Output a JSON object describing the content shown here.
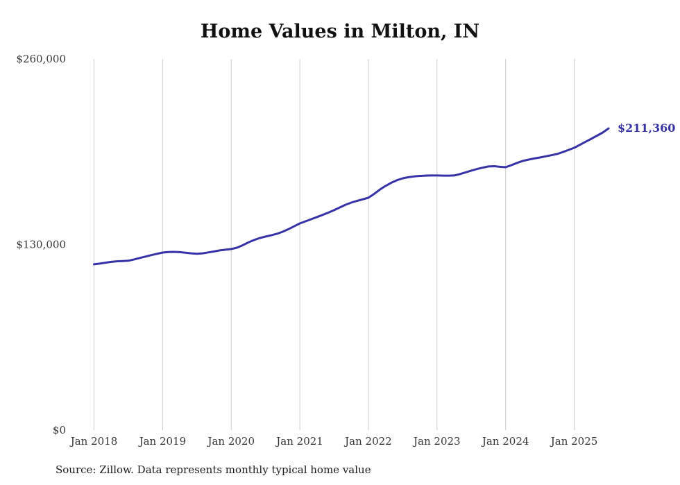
{
  "chart_data": {
    "type": "line",
    "title": "Home Values in Milton, IN",
    "source": "Source: Zillow. Data represents monthly typical home value",
    "xlabel": "",
    "ylabel": "",
    "ylim": [
      0,
      260000
    ],
    "yticks": [
      {
        "value": 0,
        "label": "$0"
      },
      {
        "value": 130000,
        "label": "$130,000"
      },
      {
        "value": 260000,
        "label": "$260,000"
      }
    ],
    "xticks": [
      "Jan 2018",
      "Jan 2019",
      "Jan 2020",
      "Jan 2021",
      "Jan 2022",
      "Jan 2023",
      "Jan 2024",
      "Jan 2025"
    ],
    "grid": "vertical-only",
    "legend": "none",
    "line_color": "#3632a8",
    "grid_color": "#cccccc",
    "tick_color": "#363636",
    "end_label": "$211,360",
    "x": [
      "2018-01",
      "2018-02",
      "2018-03",
      "2018-04",
      "2018-05",
      "2018-06",
      "2018-07",
      "2018-08",
      "2018-09",
      "2018-10",
      "2018-11",
      "2018-12",
      "2019-01",
      "2019-02",
      "2019-03",
      "2019-04",
      "2019-05",
      "2019-06",
      "2019-07",
      "2019-08",
      "2019-09",
      "2019-10",
      "2019-11",
      "2019-12",
      "2020-01",
      "2020-02",
      "2020-03",
      "2020-04",
      "2020-05",
      "2020-06",
      "2020-07",
      "2020-08",
      "2020-09",
      "2020-10",
      "2020-11",
      "2020-12",
      "2021-01",
      "2021-02",
      "2021-03",
      "2021-04",
      "2021-05",
      "2021-06",
      "2021-07",
      "2021-08",
      "2021-09",
      "2021-10",
      "2021-11",
      "2021-12",
      "2022-01",
      "2022-02",
      "2022-03",
      "2022-04",
      "2022-05",
      "2022-06",
      "2022-07",
      "2022-08",
      "2022-09",
      "2022-10",
      "2022-11",
      "2022-12",
      "2023-01",
      "2023-02",
      "2023-03",
      "2023-04",
      "2023-05",
      "2023-06",
      "2023-07",
      "2023-08",
      "2023-09",
      "2023-10",
      "2023-11",
      "2023-12",
      "2024-01",
      "2024-02",
      "2024-03",
      "2024-04",
      "2024-05",
      "2024-06",
      "2024-07",
      "2024-08",
      "2024-09",
      "2024-10",
      "2024-11",
      "2024-12",
      "2025-01",
      "2025-02",
      "2025-03",
      "2025-04",
      "2025-05",
      "2025-06",
      "2025-07"
    ],
    "values": [
      116200,
      116700,
      117300,
      117900,
      118300,
      118500,
      118700,
      119600,
      120600,
      121600,
      122600,
      123500,
      124400,
      124800,
      124900,
      124700,
      124300,
      123900,
      123600,
      123900,
      124500,
      125200,
      125900,
      126400,
      126900,
      127800,
      129500,
      131500,
      133200,
      134600,
      135600,
      136500,
      137600,
      139000,
      140800,
      142800,
      144800,
      146300,
      147800,
      149300,
      150800,
      152400,
      154100,
      156000,
      157900,
      159400,
      160600,
      161700,
      162800,
      165500,
      168500,
      171100,
      173300,
      175100,
      176400,
      177200,
      177700,
      178100,
      178300,
      178400,
      178400,
      178300,
      178300,
      178400,
      179400,
      180600,
      181800,
      182900,
      183900,
      184700,
      184900,
      184500,
      184200,
      185600,
      187200,
      188600,
      189500,
      190300,
      191000,
      191800,
      192600,
      193400,
      194800,
      196300,
      197800,
      199900,
      202000,
      204100,
      206300,
      208500,
      211360
    ]
  }
}
